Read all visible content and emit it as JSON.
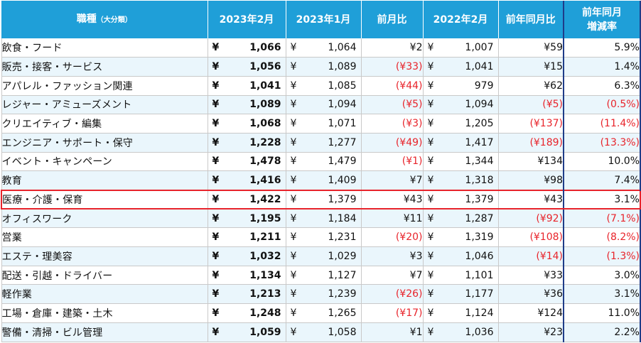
{
  "header": {
    "occupation": "職種",
    "occupation_sub": "（大分類）",
    "feb_2023": "2023年2月",
    "jan_2023": "2023年1月",
    "mom": "前月比",
    "feb_2022": "2022年2月",
    "yoy": "前年同月比",
    "yoy_pct_line1": "前年同月",
    "yoy_pct_line2": "増減率"
  },
  "currency_symbol": "¥",
  "highlight_row_index": 8,
  "colors": {
    "header_bg": "#1f9fd8",
    "alt_row_bg": "#eaf6fc",
    "negative": "#e8242b",
    "highlight_border": "#e8242b",
    "column_border": "#1f3c88"
  },
  "rows": [
    {
      "name": "飲食・フード",
      "feb2023": "1,066",
      "jan2023": "1,064",
      "mom": "¥2",
      "mom_neg": false,
      "feb2022": "1,007",
      "yoy": "¥59",
      "yoy_neg": false,
      "pct": "5.9%",
      "pct_neg": false
    },
    {
      "name": "販売・接客・サービス",
      "feb2023": "1,056",
      "jan2023": "1,089",
      "mom": "(¥33)",
      "mom_neg": true,
      "feb2022": "1,041",
      "yoy": "¥15",
      "yoy_neg": false,
      "pct": "1.4%",
      "pct_neg": false
    },
    {
      "name": "アパレル・ファッション関連",
      "feb2023": "1,041",
      "jan2023": "1,085",
      "mom": "(¥44)",
      "mom_neg": true,
      "feb2022": "979",
      "yoy": "¥62",
      "yoy_neg": false,
      "pct": "6.3%",
      "pct_neg": false
    },
    {
      "name": "レジャー・アミューズメント",
      "feb2023": "1,089",
      "jan2023": "1,094",
      "mom": "(¥5)",
      "mom_neg": true,
      "feb2022": "1,094",
      "yoy": "(¥5)",
      "yoy_neg": true,
      "pct": "(0.5%)",
      "pct_neg": true
    },
    {
      "name": "クリエイティブ・編集",
      "feb2023": "1,068",
      "jan2023": "1,071",
      "mom": "(¥3)",
      "mom_neg": true,
      "feb2022": "1,205",
      "yoy": "(¥137)",
      "yoy_neg": true,
      "pct": "(11.4%)",
      "pct_neg": true
    },
    {
      "name": "エンジニア・サポート・保守",
      "feb2023": "1,228",
      "jan2023": "1,277",
      "mom": "(¥49)",
      "mom_neg": true,
      "feb2022": "1,417",
      "yoy": "(¥189)",
      "yoy_neg": true,
      "pct": "(13.3%)",
      "pct_neg": true
    },
    {
      "name": "イベント・キャンペーン",
      "feb2023": "1,478",
      "jan2023": "1,479",
      "mom": "(¥1)",
      "mom_neg": true,
      "feb2022": "1,344",
      "yoy": "¥134",
      "yoy_neg": false,
      "pct": "10.0%",
      "pct_neg": false
    },
    {
      "name": "教育",
      "feb2023": "1,416",
      "jan2023": "1,409",
      "mom": "¥7",
      "mom_neg": false,
      "feb2022": "1,318",
      "yoy": "¥98",
      "yoy_neg": false,
      "pct": "7.4%",
      "pct_neg": false
    },
    {
      "name": "医療・介護・保育",
      "feb2023": "1,422",
      "jan2023": "1,379",
      "mom": "¥43",
      "mom_neg": false,
      "feb2022": "1,379",
      "yoy": "¥43",
      "yoy_neg": false,
      "pct": "3.1%",
      "pct_neg": false
    },
    {
      "name": "オフィスワーク",
      "feb2023": "1,195",
      "jan2023": "1,184",
      "mom": "¥11",
      "mom_neg": false,
      "feb2022": "1,287",
      "yoy": "(¥92)",
      "yoy_neg": true,
      "pct": "(7.1%)",
      "pct_neg": true
    },
    {
      "name": "営業",
      "feb2023": "1,211",
      "jan2023": "1,231",
      "mom": "(¥20)",
      "mom_neg": true,
      "feb2022": "1,319",
      "yoy": "(¥108)",
      "yoy_neg": true,
      "pct": "(8.2%)",
      "pct_neg": true
    },
    {
      "name": "エステ・理美容",
      "feb2023": "1,032",
      "jan2023": "1,029",
      "mom": "¥3",
      "mom_neg": false,
      "feb2022": "1,046",
      "yoy": "(¥14)",
      "yoy_neg": true,
      "pct": "(1.3%)",
      "pct_neg": true
    },
    {
      "name": "配送・引越・ドライバー",
      "feb2023": "1,134",
      "jan2023": "1,127",
      "mom": "¥7",
      "mom_neg": false,
      "feb2022": "1,101",
      "yoy": "¥33",
      "yoy_neg": false,
      "pct": "3.0%",
      "pct_neg": false
    },
    {
      "name": "軽作業",
      "feb2023": "1,213",
      "jan2023": "1,239",
      "mom": "(¥26)",
      "mom_neg": true,
      "feb2022": "1,177",
      "yoy": "¥36",
      "yoy_neg": false,
      "pct": "3.1%",
      "pct_neg": false
    },
    {
      "name": "工場・倉庫・建築・土木",
      "feb2023": "1,248",
      "jan2023": "1,265",
      "mom": "(¥17)",
      "mom_neg": true,
      "feb2022": "1,124",
      "yoy": "¥124",
      "yoy_neg": false,
      "pct": "11.0%",
      "pct_neg": false
    },
    {
      "name": "警備・清掃・ビル管理",
      "feb2023": "1,059",
      "jan2023": "1,058",
      "mom": "¥1",
      "mom_neg": false,
      "feb2022": "1,036",
      "yoy": "¥23",
      "yoy_neg": false,
      "pct": "2.2%",
      "pct_neg": false
    }
  ]
}
